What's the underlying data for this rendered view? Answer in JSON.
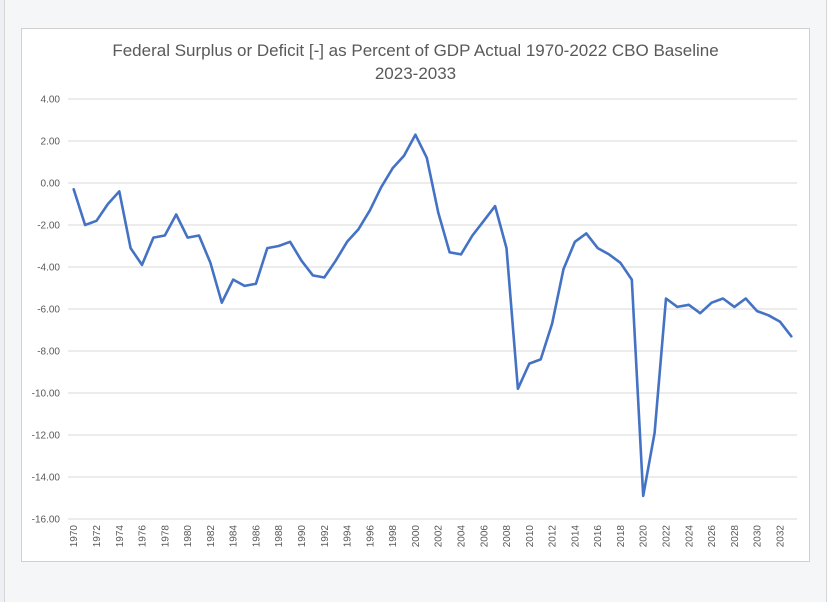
{
  "chart_data": {
    "type": "line",
    "title_line1": "Federal Surplus or Deficit [-] as Percent of GDP Actual 1970-2022 CBO Baseline",
    "title_line2": "2023-2033",
    "xlabel": "",
    "ylabel": "",
    "ylim": [
      -16,
      4
    ],
    "ytick_step": 2,
    "ytick_labels": [
      "4.00",
      "2.00",
      "0.00",
      "-2.00",
      "-4.00",
      "-6.00",
      "-8.00",
      "-10.00",
      "-12.00",
      "-14.00",
      "-16.00"
    ],
    "xtick_labels": [
      "1970",
      "1972",
      "1974",
      "1976",
      "1978",
      "1980",
      "1982",
      "1984",
      "1986",
      "1988",
      "1990",
      "1992",
      "1994",
      "1996",
      "1998",
      "2000",
      "2002",
      "2004",
      "2006",
      "2008",
      "2010",
      "2012",
      "2014",
      "2016",
      "2018",
      "2020",
      "2022",
      "2024",
      "2026",
      "2028",
      "2030",
      "2032"
    ],
    "grid": true,
    "line_color": "#4472c4",
    "x": [
      1970,
      1971,
      1972,
      1973,
      1974,
      1975,
      1976,
      1977,
      1978,
      1979,
      1980,
      1981,
      1982,
      1983,
      1984,
      1985,
      1986,
      1987,
      1988,
      1989,
      1990,
      1991,
      1992,
      1993,
      1994,
      1995,
      1996,
      1997,
      1998,
      1999,
      2000,
      2001,
      2002,
      2003,
      2004,
      2005,
      2006,
      2007,
      2008,
      2009,
      2010,
      2011,
      2012,
      2013,
      2014,
      2015,
      2016,
      2017,
      2018,
      2019,
      2020,
      2021,
      2022,
      2023,
      2024,
      2025,
      2026,
      2027,
      2028,
      2029,
      2030,
      2031,
      2032,
      2033
    ],
    "values": [
      -0.3,
      -2.0,
      -1.8,
      -1.0,
      -0.4,
      -3.1,
      -3.9,
      -2.6,
      -2.5,
      -1.5,
      -2.6,
      -2.5,
      -3.8,
      -5.7,
      -4.6,
      -4.9,
      -4.8,
      -3.1,
      -3.0,
      -2.8,
      -3.7,
      -4.4,
      -4.5,
      -3.7,
      -2.8,
      -2.2,
      -1.3,
      -0.2,
      0.7,
      1.3,
      2.3,
      1.2,
      -1.4,
      -3.3,
      -3.4,
      -2.5,
      -1.8,
      -1.1,
      -3.1,
      -9.8,
      -8.6,
      -8.4,
      -6.7,
      -4.1,
      -2.8,
      -2.4,
      -3.1,
      -3.4,
      -3.8,
      -4.6,
      -14.9,
      -11.9,
      -5.5,
      -5.9,
      -5.8,
      -6.2,
      -5.7,
      -5.5,
      -5.9,
      -5.5,
      -6.1,
      -6.3,
      -6.6,
      -7.3
    ]
  }
}
